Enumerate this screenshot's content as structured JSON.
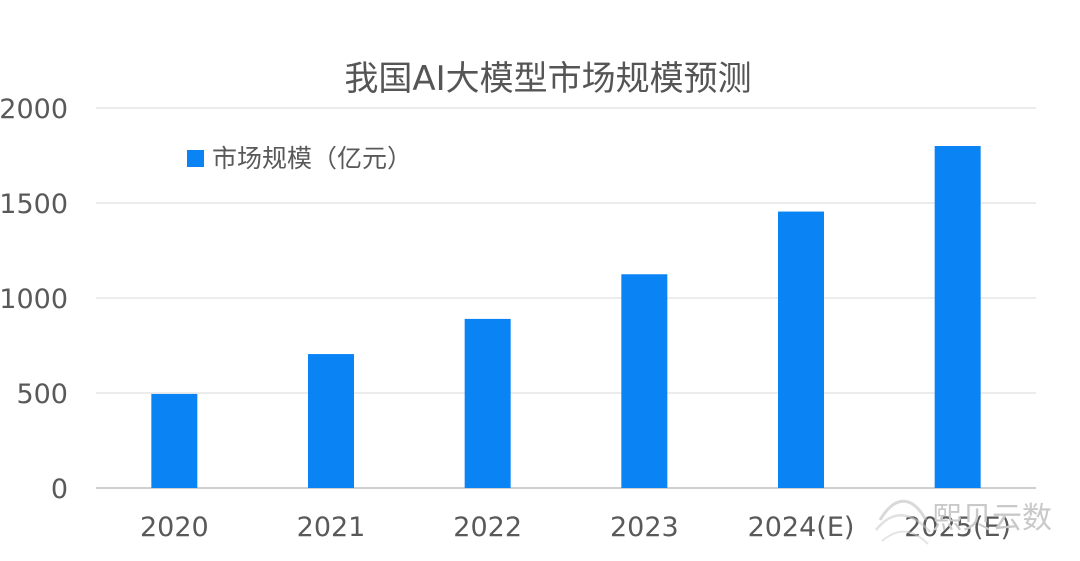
{
  "chart_data": {
    "type": "bar",
    "title": "我国AI大模型市场规模预测",
    "xlabel": "",
    "ylabel": "",
    "categories": [
      "2020",
      "2021",
      "2022",
      "2023",
      "2024(E)",
      "2025(E)"
    ],
    "series": [
      {
        "name": "市场规模（亿元）",
        "values": [
          495,
          705,
          890,
          1125,
          1455,
          1800
        ],
        "color": "#0A84F5"
      }
    ],
    "ylim": [
      0,
      2000
    ],
    "yticks": [
      "0",
      "500",
      "1000",
      "1500",
      "2000"
    ],
    "grid": true,
    "legend_position": "top-left"
  },
  "watermark": {
    "text": "熙贝云数",
    "icon": "wave-logo-icon"
  }
}
